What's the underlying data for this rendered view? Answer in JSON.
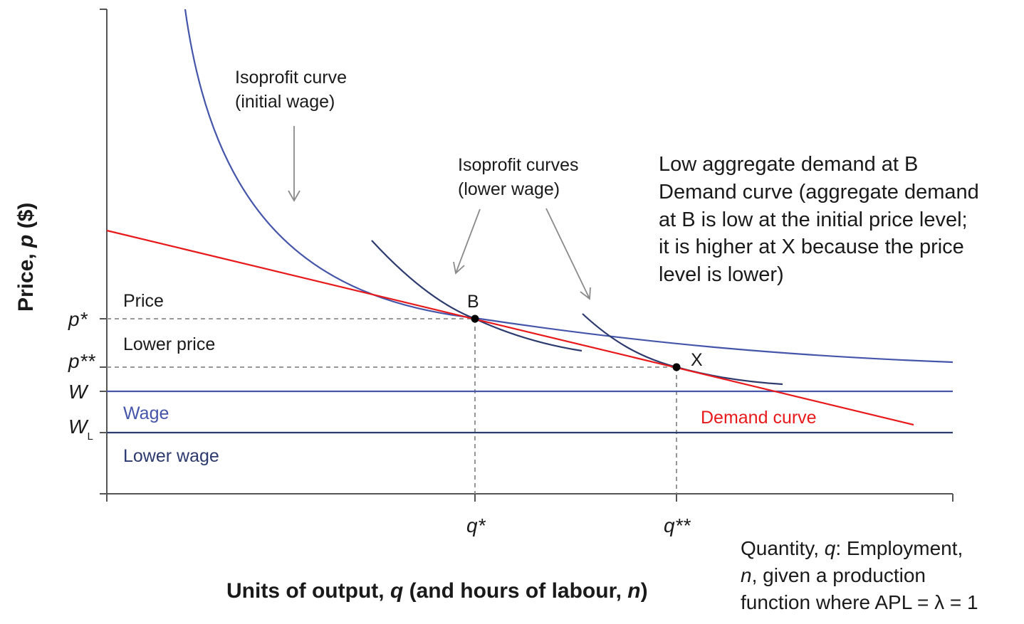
{
  "colors": {
    "axis": "#555555",
    "isoprofit_initial": "#4455aa",
    "isoprofit_lower": "#2c3a6e",
    "demand": "#e8191b",
    "wage_line": "#4455aa",
    "lower_wage_line": "#2c3a6e",
    "guide": "#8a8a8a",
    "point": "#000000"
  },
  "axes": {
    "y_title_prefix": "Price, ",
    "y_title_var": "p",
    "y_title_suffix": " ($)",
    "x_title_prefix": "Units of output, ",
    "x_title_var_q": "q",
    "x_title_mid": " (and hours of labour, ",
    "x_title_var_n": "n",
    "x_title_suffix": ")"
  },
  "y_ticks": {
    "p_star": "p*",
    "p_star_star": "p**",
    "w": "W",
    "wl_main": "W",
    "wl_sub": "L"
  },
  "x_ticks": {
    "q_star": "q*",
    "q_star_star": "q**"
  },
  "labels": {
    "price": "Price",
    "lower_price": "Lower price",
    "wage": "Wage",
    "lower_wage": "Lower wage",
    "point_b": "B",
    "point_x": "X",
    "demand_curve": "Demand curve"
  },
  "annotations": {
    "isoprofit_initial": [
      "Isoprofit curve",
      "(initial wage)"
    ],
    "isoprofit_lower": [
      "Isoprofit curves",
      "(lower wage)"
    ],
    "demand_note": [
      "Low aggregate demand at B",
      "Demand curve (aggregate demand",
      "at B is low at the initial price level;",
      "it is higher at X because the price",
      "level is lower)"
    ],
    "quantity_note": {
      "line1_prefix": "Quantity, ",
      "line1_var": "q",
      "line1_suffix": ": Employment,",
      "line2_var": "n",
      "line2_suffix": ", given a production",
      "line3": "function where APL = λ = 1"
    }
  }
}
